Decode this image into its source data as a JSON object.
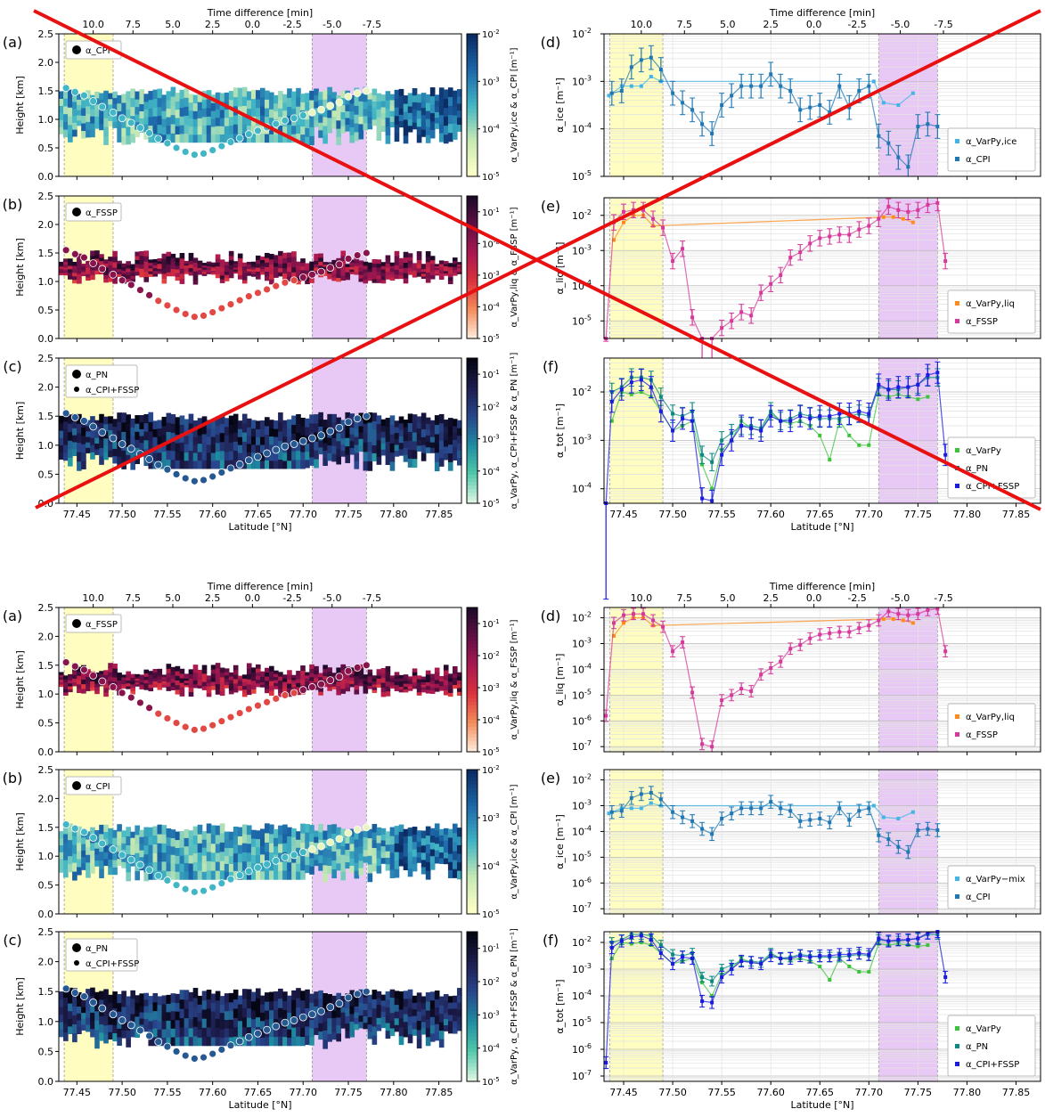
{
  "figure": {
    "crossed_out_note": "",
    "top_block": [
      {
        "id": "a",
        "label": "(a)",
        "type": "heatmap",
        "legend": [
          "α_CPI"
        ],
        "cmap": "ice",
        "cbar_label": "α_VarPy,ice & α_CPI [m⁻¹]",
        "vmin_exp": -5,
        "vmax_exp": -2
      },
      {
        "id": "b",
        "label": "(b)",
        "type": "heatmap",
        "legend": [
          "α_FSSP"
        ],
        "cmap": "liq",
        "cbar_label": "α_VarPy,liq & α_FSSP [m⁻¹]",
        "vmin_exp": -5,
        "vmax_exp": -0.5
      },
      {
        "id": "c",
        "label": "(c)",
        "type": "heatmap",
        "legend": [
          "α_PN",
          "α_CPI+FSSP"
        ],
        "cmap": "tot",
        "cbar_label": "α_VarPy, α_CPI+FSSP & α_PN [m⁻¹]",
        "vmin_exp": -5,
        "vmax_exp": -0.5
      },
      {
        "id": "d",
        "label": "(d)",
        "type": "line",
        "ylabel": "α_ice [m⁻¹]",
        "ylim_exp": [
          -5,
          -2
        ],
        "legend": [
          "α_VarPy,ice",
          "α_CPI"
        ]
      },
      {
        "id": "e",
        "label": "(e)",
        "type": "line",
        "ylabel": "α_liq [m⁻¹]",
        "ylim_exp": [
          -5.5,
          -1.5
        ],
        "legend": [
          "α_VarPy,liq",
          "α_FSSP"
        ]
      },
      {
        "id": "f",
        "label": "(f)",
        "type": "line",
        "ylabel": "α_tot [m⁻¹]",
        "ylim_exp": [
          -4.3,
          -1.3
        ],
        "legend": [
          "α_VarPy",
          "α_PN",
          "α_CPI+FSSP"
        ]
      }
    ],
    "bottom_block": [
      {
        "id": "a",
        "label": "(a)",
        "type": "heatmap",
        "legend": [
          "α_FSSP"
        ],
        "cmap": "liq",
        "cbar_label": "α_VarPy,liq & α_FSSP [m⁻¹]",
        "vmin_exp": -5,
        "vmax_exp": -0.5
      },
      {
        "id": "b",
        "label": "(b)",
        "type": "heatmap",
        "legend": [
          "α_CPI"
        ],
        "cmap": "ice",
        "cbar_label": "α_VarPy,ice & α_CPI [m⁻¹]",
        "vmin_exp": -5,
        "vmax_exp": -2
      },
      {
        "id": "c",
        "label": "(c)",
        "type": "heatmap",
        "legend": [
          "α_PN",
          "α_CPI+FSSP"
        ],
        "cmap": "tot",
        "cbar_label": "α_VarPy, α_CPI+FSSP & α_PN [m⁻¹]",
        "vmin_exp": -5,
        "vmax_exp": -0.5
      },
      {
        "id": "d",
        "label": "(d)",
        "type": "line",
        "ylabel": "α_liq [m⁻¹]",
        "ylim_exp": [
          -7.2,
          -1.6
        ],
        "legend": [
          "α_VarPy,liq",
          "α_FSSP"
        ]
      },
      {
        "id": "e",
        "label": "(e)",
        "type": "line",
        "ylabel": "α_ice [m⁻¹]",
        "ylim_exp": [
          -7.2,
          -1.6
        ],
        "legend": [
          "α_VarPy−mix",
          "α_CPI"
        ]
      },
      {
        "id": "f",
        "label": "(f)",
        "type": "line",
        "ylabel": "α_tot [m⁻¹]",
        "ylim_exp": [
          -7.2,
          -1.6
        ],
        "legend": [
          "α_VarPy",
          "α_PN",
          "α_CPI+FSSP"
        ]
      }
    ],
    "axis_labels": {
      "x_bottom": "Latitude [°N]",
      "x_top": "Time difference [min]",
      "y_left": "Height [km]"
    }
  },
  "chart_data": {
    "type": "line",
    "x_range": [
      77.43,
      77.875
    ],
    "height_range_km": [
      0,
      2.5
    ],
    "height_ticks": [
      0.0,
      0.5,
      1.0,
      1.5,
      2.0,
      2.5
    ],
    "lat_ticks": [
      "77.45",
      "77.50",
      "77.55",
      "77.60",
      "77.65",
      "77.70",
      "77.75",
      "77.80",
      "77.85"
    ],
    "time_ticks": [
      "10.0",
      "7.5",
      "5.0",
      "2.5",
      "0.0",
      "-2.5",
      "-5.0",
      "-7.5"
    ],
    "shaded_regions": [
      {
        "from": 77.436,
        "to": 77.49,
        "color": "#fffec0"
      },
      {
        "from": 77.71,
        "to": 77.77,
        "color": "#e8c8f4"
      }
    ],
    "colors": {
      "varpy_ice": "#41b6e6",
      "cpi": "#1f78b4",
      "varpy_liq": "#ff8c1a",
      "fssp": "#d6399b",
      "varpy": "#3bc43b",
      "pn": "#0a8a80",
      "cpi_fssp": "#1a1ae0",
      "cross": "#e81010"
    },
    "flight_track": {
      "lat": [
        77.438,
        77.448,
        77.458,
        77.468,
        77.478,
        77.49,
        77.5,
        77.51,
        77.52,
        77.53,
        77.54,
        77.55,
        77.56,
        77.57,
        77.58,
        77.59,
        77.6,
        77.61,
        77.62,
        77.63,
        77.64,
        77.65,
        77.66,
        77.67,
        77.68,
        77.69,
        77.7,
        77.71,
        77.72,
        77.73,
        77.74,
        77.75,
        77.76,
        77.77
      ],
      "height": [
        1.55,
        1.48,
        1.42,
        1.32,
        1.22,
        1.12,
        1.02,
        0.94,
        0.85,
        0.76,
        0.66,
        0.58,
        0.5,
        0.43,
        0.38,
        0.4,
        0.46,
        0.53,
        0.6,
        0.67,
        0.74,
        0.8,
        0.86,
        0.92,
        0.98,
        1.02,
        1.07,
        1.12,
        1.17,
        1.24,
        1.3,
        1.4,
        1.46,
        1.5
      ]
    },
    "series": {
      "varpy_ice": {
        "lat": [
          77.435,
          77.448,
          77.458,
          77.468,
          77.478,
          77.488,
          77.705,
          77.715,
          77.73,
          77.745
        ],
        "exp": [
          -3.3,
          -3.1,
          -3.1,
          -3.1,
          -2.9,
          -3.0,
          -3.0,
          -3.45,
          -3.5,
          -3.25
        ]
      },
      "cpi": {
        "lat": [
          77.438,
          77.448,
          77.458,
          77.468,
          77.478,
          77.488,
          77.5,
          77.51,
          77.52,
          77.53,
          77.54,
          77.55,
          77.56,
          77.57,
          77.58,
          77.59,
          77.6,
          77.61,
          77.62,
          77.63,
          77.64,
          77.65,
          77.66,
          77.67,
          77.68,
          77.69,
          77.7,
          77.71,
          77.72,
          77.73,
          77.74,
          77.75,
          77.76,
          77.77
        ],
        "exp": [
          -3.25,
          -3.2,
          -2.7,
          -2.55,
          -2.5,
          -2.75,
          -3.25,
          -3.45,
          -3.6,
          -3.9,
          -4.1,
          -3.5,
          -3.3,
          -3.1,
          -3.1,
          -3.1,
          -2.85,
          -3.1,
          -3.2,
          -3.6,
          -3.55,
          -3.5,
          -3.65,
          -3.1,
          -3.55,
          -3.2,
          -3.1,
          -4.15,
          -4.3,
          -4.6,
          -4.8,
          -3.95,
          -3.9,
          -3.95
        ],
        "err": 0.25
      },
      "varpy_liq": {
        "lat": [
          77.44,
          77.45,
          77.46,
          77.47,
          77.48,
          77.715,
          77.725,
          77.735,
          77.745
        ],
        "exp": [
          -2.7,
          -2.2,
          -2.0,
          -2.0,
          -2.3,
          -2.05,
          -2.05,
          -2.1,
          -2.2
        ]
      },
      "fssp": {
        "lat": [
          77.432,
          77.44,
          77.45,
          77.46,
          77.47,
          77.48,
          77.49,
          77.5,
          77.51,
          77.52,
          77.53,
          77.54,
          77.55,
          77.56,
          77.57,
          77.58,
          77.59,
          77.6,
          77.61,
          77.62,
          77.63,
          77.64,
          77.65,
          77.66,
          77.67,
          77.68,
          77.69,
          77.7,
          77.71,
          77.72,
          77.73,
          77.74,
          77.75,
          77.76,
          77.77,
          77.778
        ],
        "exp": [
          -5.8,
          -2.2,
          -1.9,
          -1.85,
          -1.85,
          -2.1,
          -2.35,
          -3.3,
          -2.95,
          -4.9,
          -6.9,
          -7.0,
          -5.2,
          -5.0,
          -4.75,
          -4.85,
          -4.2,
          -3.95,
          -3.7,
          -3.2,
          -3.05,
          -2.8,
          -2.65,
          -2.6,
          -2.55,
          -2.55,
          -2.4,
          -2.3,
          -2.1,
          -1.75,
          -1.85,
          -1.9,
          -1.85,
          -1.7,
          -1.65,
          -3.3
        ],
        "err": 0.22
      },
      "varpy": {
        "lat": [
          77.438,
          77.448,
          77.458,
          77.468,
          77.478,
          77.488,
          77.5,
          77.51,
          77.52,
          77.53,
          77.54,
          77.55,
          77.56,
          77.57,
          77.58,
          77.59,
          77.6,
          77.61,
          77.62,
          77.63,
          77.64,
          77.65,
          77.66,
          77.67,
          77.68,
          77.69,
          77.7,
          77.71,
          77.72,
          77.73,
          77.74,
          77.75,
          77.76
        ],
        "exp": [
          -2.6,
          -2.0,
          -2.05,
          -2.0,
          -2.1,
          -2.4,
          -2.8,
          -2.7,
          -2.6,
          -3.5,
          -4.0,
          -3.2,
          -3.0,
          -2.6,
          -2.75,
          -2.8,
          -2.45,
          -2.6,
          -2.65,
          -2.6,
          -2.7,
          -2.9,
          -3.4,
          -2.6,
          -2.9,
          -3.1,
          -3.1,
          -2.05,
          -2.1,
          -2.05,
          -2.1,
          -2.15,
          -2.1
        ]
      },
      "pn": {
        "lat": [
          77.438,
          77.448,
          77.458,
          77.468,
          77.478,
          77.488,
          77.5,
          77.51,
          77.52,
          77.53,
          77.54,
          77.55,
          77.56,
          77.57,
          77.58,
          77.59,
          77.6,
          77.61,
          77.62,
          77.63,
          77.64,
          77.65,
          77.66,
          77.67,
          77.68,
          77.69,
          77.7,
          77.71,
          77.72,
          77.73,
          77.74,
          77.75,
          77.76,
          77.77
        ],
        "exp": [
          -2.0,
          -1.9,
          -1.7,
          -1.7,
          -1.75,
          -2.1,
          -2.45,
          -2.5,
          -2.4,
          -3.3,
          -3.45,
          -3.0,
          -2.85,
          -2.7,
          -2.7,
          -2.75,
          -2.4,
          -2.6,
          -2.55,
          -2.45,
          -2.5,
          -2.55,
          -2.55,
          -2.55,
          -2.5,
          -2.45,
          -2.5,
          -1.9,
          -1.95,
          -1.95,
          -1.9,
          -1.85,
          -1.7,
          -1.7
        ],
        "err": 0.18
      },
      "cpi_fssp": {
        "lat": [
          77.432,
          77.438,
          77.448,
          77.458,
          77.468,
          77.478,
          77.488,
          77.5,
          77.51,
          77.52,
          77.53,
          77.54,
          77.55,
          77.56,
          77.57,
          77.58,
          77.59,
          77.6,
          77.61,
          77.62,
          77.63,
          77.64,
          77.65,
          77.66,
          77.67,
          77.68,
          77.69,
          77.7,
          77.71,
          77.72,
          77.73,
          77.74,
          77.75,
          77.76,
          77.77,
          77.778
        ],
        "exp": [
          -6.5,
          -2.2,
          -1.95,
          -1.8,
          -1.75,
          -1.9,
          -2.4,
          -2.8,
          -2.55,
          -2.6,
          -4.2,
          -4.25,
          -3.3,
          -3.0,
          -2.7,
          -2.75,
          -2.8,
          -2.5,
          -2.6,
          -2.6,
          -2.5,
          -2.55,
          -2.5,
          -2.5,
          -2.45,
          -2.45,
          -2.4,
          -2.45,
          -1.85,
          -1.95,
          -1.9,
          -1.9,
          -1.85,
          -1.65,
          -1.6,
          -3.3
        ],
        "err": 0.22
      }
    }
  }
}
